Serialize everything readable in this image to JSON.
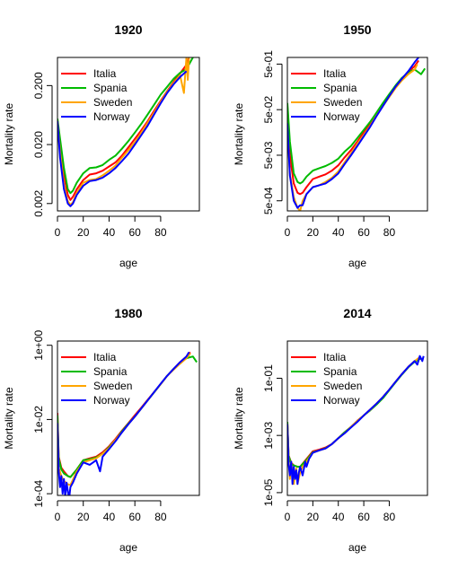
{
  "chart_data": [
    {
      "type": "line",
      "title": "1920",
      "xlabel": "age",
      "ylabel": "Mortality rate",
      "log_y": true,
      "xlim": [
        0,
        110
      ],
      "ylim": [
        0.0015,
        0.6
      ],
      "xticks": [
        0,
        20,
        40,
        60,
        80
      ],
      "yticks": [
        0.002,
        0.02,
        0.2
      ],
      "ytick_labels": [
        "0.002",
        "0.020",
        "0.200"
      ],
      "legend_position": "top-left",
      "series": [
        {
          "name": "Italia",
          "color": "#ff0000",
          "x": [
            0,
            2,
            5,
            8,
            10,
            12,
            15,
            20,
            25,
            30,
            35,
            40,
            45,
            50,
            55,
            60,
            65,
            70,
            75,
            80,
            85,
            90,
            95,
            100,
            102
          ],
          "y": [
            0.05,
            0.02,
            0.006,
            0.0028,
            0.0023,
            0.0026,
            0.0035,
            0.005,
            0.0062,
            0.0065,
            0.0072,
            0.0085,
            0.01,
            0.013,
            0.018,
            0.025,
            0.035,
            0.05,
            0.075,
            0.11,
            0.16,
            0.23,
            0.32,
            0.45,
            0.6
          ]
        },
        {
          "name": "Spania",
          "color": "#00bb00",
          "x": [
            0,
            2,
            5,
            8,
            10,
            12,
            15,
            20,
            25,
            30,
            35,
            40,
            45,
            50,
            55,
            60,
            65,
            70,
            75,
            80,
            85,
            90,
            95,
            100,
            105
          ],
          "y": [
            0.055,
            0.025,
            0.008,
            0.0035,
            0.003,
            0.0033,
            0.0045,
            0.0065,
            0.008,
            0.0082,
            0.009,
            0.011,
            0.013,
            0.017,
            0.023,
            0.032,
            0.045,
            0.065,
            0.095,
            0.14,
            0.19,
            0.26,
            0.33,
            0.38,
            0.6
          ]
        },
        {
          "name": "Sweden",
          "color": "#ffa500",
          "x": [
            0,
            2,
            5,
            8,
            10,
            12,
            15,
            20,
            25,
            30,
            35,
            40,
            45,
            50,
            55,
            60,
            65,
            70,
            75,
            80,
            85,
            90,
            95,
            98,
            100,
            101,
            102
          ],
          "y": [
            0.05,
            0.015,
            0.004,
            0.0022,
            0.0019,
            0.0021,
            0.003,
            0.0045,
            0.005,
            0.0052,
            0.006,
            0.0072,
            0.0088,
            0.012,
            0.016,
            0.022,
            0.032,
            0.047,
            0.07,
            0.105,
            0.155,
            0.22,
            0.3,
            0.15,
            0.6,
            0.25,
            0.6
          ]
        },
        {
          "name": "Norway",
          "color": "#0000ff",
          "x": [
            0,
            2,
            5,
            8,
            10,
            12,
            15,
            20,
            25,
            30,
            35,
            40,
            45,
            50,
            55,
            60,
            65,
            70,
            75,
            80,
            85,
            90,
            95,
            100
          ],
          "y": [
            0.05,
            0.012,
            0.0035,
            0.002,
            0.0018,
            0.002,
            0.0028,
            0.004,
            0.0048,
            0.005,
            0.0055,
            0.0065,
            0.008,
            0.0105,
            0.014,
            0.02,
            0.029,
            0.042,
            0.065,
            0.1,
            0.15,
            0.21,
            0.28,
            0.35
          ]
        }
      ]
    },
    {
      "type": "line",
      "title": "1950",
      "xlabel": "age",
      "ylabel": "Mortality rate",
      "log_y": true,
      "xlim": [
        0,
        110
      ],
      "ylim": [
        0.0003,
        0.7
      ],
      "xticks": [
        0,
        20,
        40,
        60,
        80
      ],
      "yticks": [
        0.0005,
        0.005,
        0.05,
        0.5
      ],
      "ytick_labels": [
        "5e-04",
        "5e-03",
        "5e-02",
        "5e-01"
      ],
      "legend_position": "top-left",
      "series": [
        {
          "name": "Italia",
          "color": "#ff0000",
          "x": [
            0,
            2,
            5,
            8,
            10,
            12,
            15,
            20,
            25,
            30,
            35,
            40,
            45,
            50,
            55,
            60,
            65,
            70,
            75,
            80,
            85,
            90,
            95,
            100,
            103
          ],
          "y": [
            0.06,
            0.005,
            0.0012,
            0.00075,
            0.0007,
            0.00075,
            0.001,
            0.0015,
            0.0017,
            0.0019,
            0.0023,
            0.003,
            0.0045,
            0.0065,
            0.01,
            0.016,
            0.025,
            0.04,
            0.065,
            0.1,
            0.16,
            0.24,
            0.34,
            0.45,
            0.6
          ]
        },
        {
          "name": "Spania",
          "color": "#00bb00",
          "x": [
            0,
            2,
            5,
            8,
            10,
            12,
            15,
            20,
            25,
            30,
            35,
            40,
            45,
            50,
            55,
            60,
            65,
            70,
            75,
            80,
            85,
            90,
            95,
            100,
            105,
            108
          ],
          "y": [
            0.07,
            0.01,
            0.002,
            0.0013,
            0.0012,
            0.0013,
            0.0017,
            0.0023,
            0.0026,
            0.0029,
            0.0034,
            0.0042,
            0.006,
            0.008,
            0.012,
            0.018,
            0.027,
            0.043,
            0.07,
            0.11,
            0.17,
            0.25,
            0.33,
            0.38,
            0.3,
            0.4
          ]
        },
        {
          "name": "Sweden",
          "color": "#ffa500",
          "x": [
            0,
            2,
            5,
            8,
            10,
            12,
            15,
            20,
            25,
            30,
            35,
            40,
            45,
            50,
            55,
            60,
            65,
            70,
            75,
            80,
            85,
            90,
            95,
            100,
            102
          ],
          "y": [
            0.025,
            0.002,
            0.0006,
            0.00035,
            0.0003,
            0.0005,
            0.0007,
            0.001,
            0.0011,
            0.0013,
            0.0016,
            0.0022,
            0.0035,
            0.0055,
            0.009,
            0.014,
            0.022,
            0.037,
            0.06,
            0.095,
            0.15,
            0.22,
            0.3,
            0.38,
            0.5
          ]
        },
        {
          "name": "Norway",
          "color": "#0000ff",
          "x": [
            0,
            2,
            5,
            8,
            10,
            12,
            15,
            20,
            25,
            30,
            35,
            40,
            45,
            50,
            55,
            60,
            65,
            70,
            75,
            80,
            85,
            90,
            95,
            100,
            103
          ],
          "y": [
            0.025,
            0.0018,
            0.0005,
            0.00035,
            0.0004,
            0.0004,
            0.0007,
            0.001,
            0.0011,
            0.0012,
            0.0015,
            0.002,
            0.0032,
            0.005,
            0.008,
            0.013,
            0.021,
            0.036,
            0.06,
            0.1,
            0.16,
            0.24,
            0.35,
            0.55,
            0.7
          ]
        }
      ]
    },
    {
      "type": "line",
      "title": "1980",
      "xlabel": "age",
      "ylabel": "Mortality rate",
      "log_y": true,
      "xlim": [
        0,
        110
      ],
      "ylim": [
        9e-05,
        1.3
      ],
      "xticks": [
        0,
        20,
        40,
        60,
        80
      ],
      "yticks": [
        0.0001,
        0.01,
        1
      ],
      "ytick_labels": [
        "1e-04",
        "1e-02",
        "1e+00"
      ],
      "legend_position": "top-left",
      "series": [
        {
          "name": "Italia",
          "color": "#ff0000",
          "x": [
            0,
            1,
            3,
            5,
            8,
            10,
            15,
            20,
            25,
            30,
            35,
            40,
            45,
            50,
            55,
            60,
            65,
            70,
            75,
            80,
            85,
            90,
            95,
            100,
            103
          ],
          "y": [
            0.015,
            0.001,
            0.0005,
            0.0004,
            0.0003,
            0.00028,
            0.00045,
            0.0008,
            0.0009,
            0.001,
            0.0013,
            0.0019,
            0.003,
            0.005,
            0.008,
            0.013,
            0.021,
            0.034,
            0.055,
            0.09,
            0.15,
            0.23,
            0.35,
            0.5,
            0.65
          ]
        },
        {
          "name": "Spania",
          "color": "#00bb00",
          "x": [
            0,
            1,
            3,
            5,
            8,
            10,
            15,
            20,
            25,
            30,
            35,
            40,
            45,
            50,
            55,
            60,
            65,
            70,
            75,
            80,
            85,
            90,
            95,
            100,
            105,
            108
          ],
          "y": [
            0.013,
            0.0009,
            0.00045,
            0.00035,
            0.0003,
            0.00028,
            0.00045,
            0.0008,
            0.00085,
            0.00095,
            0.0012,
            0.0018,
            0.0028,
            0.0048,
            0.0078,
            0.012,
            0.02,
            0.033,
            0.054,
            0.09,
            0.15,
            0.23,
            0.33,
            0.45,
            0.5,
            0.35
          ]
        },
        {
          "name": "Sweden",
          "color": "#ffa500",
          "x": [
            0,
            1,
            3,
            5,
            8,
            10,
            15,
            20,
            25,
            30,
            35,
            40,
            45,
            50,
            55,
            60,
            65,
            70,
            75,
            80,
            85,
            90,
            95,
            100,
            103
          ],
          "y": [
            0.008,
            0.0005,
            0.0003,
            0.00022,
            0.00018,
            0.00017,
            0.0004,
            0.0007,
            0.0008,
            0.0009,
            0.0012,
            0.0017,
            0.0028,
            0.0045,
            0.0075,
            0.012,
            0.02,
            0.033,
            0.055,
            0.09,
            0.15,
            0.22,
            0.32,
            0.45,
            0.6
          ]
        },
        {
          "name": "Norway",
          "color": "#0000ff",
          "x": [
            0,
            1,
            2,
            3,
            4,
            5,
            6,
            7,
            8,
            9,
            10,
            12,
            15,
            20,
            25,
            30,
            33,
            35,
            40,
            45,
            50,
            55,
            60,
            65,
            70,
            75,
            80,
            85,
            90,
            95,
            100,
            102
          ],
          "y": [
            0.008,
            0.0004,
            0.00015,
            0.0003,
            0.0001,
            0.00025,
            8e-05,
            0.0002,
            0.00012,
            7e-05,
            0.00015,
            0.0002,
            0.00035,
            0.0007,
            0.0006,
            0.0008,
            0.0004,
            0.001,
            0.0016,
            0.0026,
            0.0045,
            0.0075,
            0.012,
            0.02,
            0.033,
            0.055,
            0.092,
            0.15,
            0.23,
            0.35,
            0.5,
            0.65
          ]
        }
      ]
    },
    {
      "type": "line",
      "title": "2014",
      "xlabel": "age",
      "ylabel": "Mortality rate",
      "log_y": true,
      "xlim": [
        0,
        110
      ],
      "ylim": [
        8e-06,
        2
      ],
      "xticks": [
        0,
        20,
        40,
        60,
        80
      ],
      "yticks": [
        1e-05,
        0.001,
        0.1
      ],
      "ytick_labels": [
        "1e-05",
        "1e-03",
        "1e-01"
      ],
      "legend_position": "top-left",
      "series": [
        {
          "name": "Italia",
          "color": "#ff0000",
          "x": [
            0,
            1,
            3,
            5,
            8,
            10,
            15,
            20,
            25,
            30,
            35,
            40,
            45,
            50,
            55,
            60,
            65,
            70,
            75,
            80,
            85,
            90,
            95,
            100,
            105
          ],
          "y": [
            0.003,
            0.0002,
            0.00011,
            9e-05,
            8e-05,
            8e-05,
            0.00015,
            0.00028,
            0.00032,
            0.00038,
            0.0005,
            0.0008,
            0.0013,
            0.002,
            0.0033,
            0.005,
            0.008,
            0.013,
            0.022,
            0.04,
            0.075,
            0.14,
            0.25,
            0.4,
            0.5
          ]
        },
        {
          "name": "Spania",
          "color": "#00bb00",
          "x": [
            0,
            1,
            3,
            5,
            8,
            10,
            15,
            20,
            25,
            30,
            35,
            40,
            45,
            50,
            55,
            60,
            65,
            70,
            75,
            80,
            85,
            90,
            95,
            100,
            105
          ],
          "y": [
            0.003,
            0.0002,
            0.0001,
            9e-05,
            8e-05,
            8e-05,
            0.00014,
            0.00026,
            0.0003,
            0.00036,
            0.0005,
            0.0008,
            0.0013,
            0.002,
            0.0032,
            0.005,
            0.0075,
            0.012,
            0.02,
            0.038,
            0.072,
            0.135,
            0.24,
            0.38,
            0.5
          ]
        },
        {
          "name": "Sweden",
          "color": "#ffa500",
          "x": [
            0,
            1,
            2,
            3,
            5,
            7,
            8,
            10,
            12,
            15,
            20,
            25,
            30,
            35,
            40,
            45,
            50,
            55,
            60,
            65,
            70,
            75,
            80,
            85,
            90,
            95,
            100,
            104
          ],
          "y": [
            0.0025,
            0.00015,
            3e-05,
            0.00012,
            2e-05,
            7e-05,
            2e-05,
            5e-05,
            8e-05,
            0.00012,
            0.00025,
            0.0003,
            0.00035,
            0.0005,
            0.0008,
            0.0012,
            0.002,
            0.0032,
            0.005,
            0.0078,
            0.013,
            0.022,
            0.04,
            0.075,
            0.14,
            0.25,
            0.4,
            0.55
          ]
        },
        {
          "name": "Norway",
          "color": "#0000ff",
          "x": [
            0,
            1,
            2,
            3,
            4,
            5,
            6,
            7,
            8,
            9,
            10,
            12,
            14,
            15,
            17,
            20,
            25,
            30,
            35,
            40,
            45,
            50,
            55,
            60,
            65,
            70,
            75,
            80,
            85,
            90,
            95,
            100,
            102,
            104,
            106,
            107
          ],
          "y": [
            0.0025,
            0.0001,
            4e-05,
            0.00012,
            2e-05,
            8e-05,
            3e-05,
            6e-05,
            2e-05,
            5e-05,
            8e-05,
            4e-05,
            0.00012,
            8e-05,
            0.00015,
            0.00025,
            0.0003,
            0.00035,
            0.0005,
            0.0008,
            0.0012,
            0.0019,
            0.003,
            0.005,
            0.008,
            0.013,
            0.022,
            0.04,
            0.075,
            0.14,
            0.25,
            0.4,
            0.3,
            0.6,
            0.4,
            0.6
          ]
        }
      ]
    }
  ]
}
